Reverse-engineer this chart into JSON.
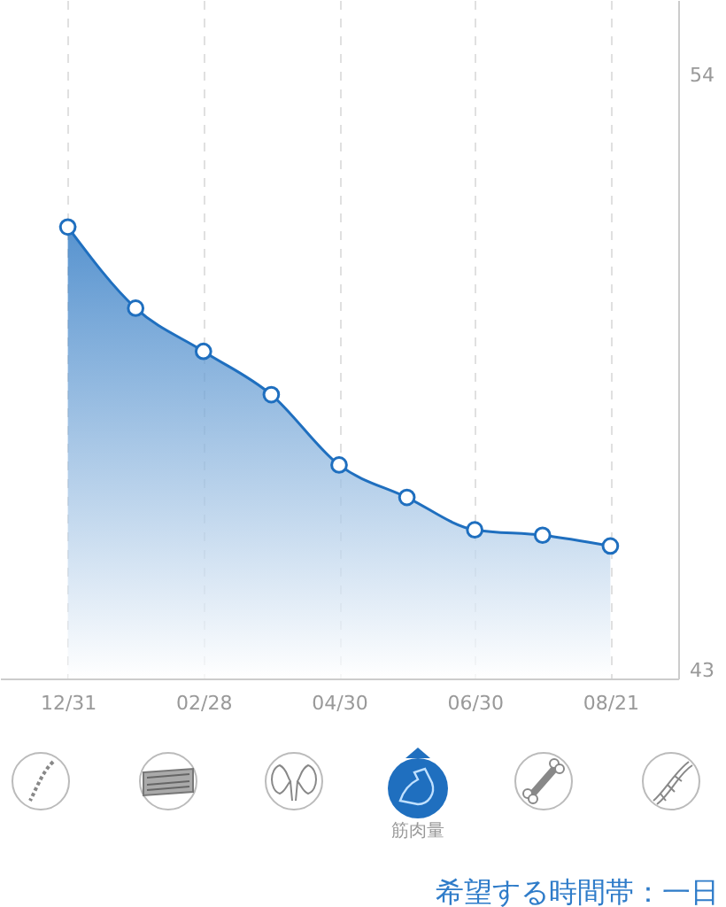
{
  "chart_data": {
    "type": "area",
    "categories": [
      "12/31",
      null,
      "02/28",
      null,
      "04/30",
      null,
      "06/30",
      null,
      "08/21"
    ],
    "series": [
      {
        "color": "#1f6fbf",
        "values": [
          51.2,
          49.7,
          48.9,
          48.1,
          46.8,
          46.2,
          45.6,
          45.5,
          45.3
        ]
      }
    ],
    "ylim": [
      42.85,
      55.4
    ],
    "yticks": [
      43,
      54
    ],
    "grid": "x",
    "marker": "circle",
    "annotations": [
      "筋肉量",
      "希望する時間帯：一日"
    ]
  }
}
